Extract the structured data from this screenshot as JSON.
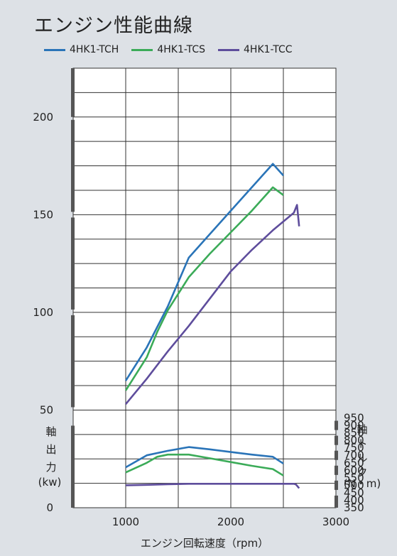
{
  "chart_data": {
    "type": "line",
    "title": "エンジン性能曲線",
    "xlabel": "エンジン回転速度（rpm）",
    "ylabel_left": [
      "軸",
      "出",
      "力",
      "(kw)"
    ],
    "ylabel_right": [
      "軸",
      "ト",
      "ル",
      "ク",
      "(N・m)"
    ],
    "xlim": [
      500,
      3000
    ],
    "x_ticks": [
      1000,
      2000,
      3000
    ],
    "ylim_left": [
      0,
      225
    ],
    "y_ticks_left": [
      0,
      50,
      100,
      150,
      200
    ],
    "ylim_right": [
      350,
      1000
    ],
    "y_ticks_right": [
      350,
      400,
      450,
      500,
      550,
      600,
      650,
      700,
      750,
      800,
      850,
      900,
      950
    ],
    "legend_position": "top",
    "series": [
      {
        "name": "4HK1-TCH",
        "quantity": "power",
        "axis": "left",
        "color": "#2a74b8",
        "points": [
          [
            1000,
            65
          ],
          [
            1200,
            82
          ],
          [
            1400,
            103
          ],
          [
            1600,
            128
          ],
          [
            1800,
            140
          ],
          [
            2000,
            152
          ],
          [
            2200,
            164
          ],
          [
            2300,
            170
          ],
          [
            2400,
            176
          ],
          [
            2500,
            170
          ]
        ]
      },
      {
        "name": "4HK1-TCH",
        "quantity": "torque",
        "axis": "right",
        "color": "#2a74b8",
        "points": [
          [
            1000,
            620
          ],
          [
            1200,
            700
          ],
          [
            1400,
            730
          ],
          [
            1600,
            755
          ],
          [
            1800,
            740
          ],
          [
            2000,
            722
          ],
          [
            2200,
            705
          ],
          [
            2400,
            690
          ],
          [
            2500,
            645
          ]
        ]
      },
      {
        "name": "4HK1-TCS",
        "quantity": "power",
        "axis": "left",
        "color": "#3bab58",
        "points": [
          [
            1000,
            60
          ],
          [
            1200,
            77
          ],
          [
            1300,
            90
          ],
          [
            1400,
            101
          ],
          [
            1600,
            118
          ],
          [
            1800,
            130
          ],
          [
            2000,
            141
          ],
          [
            2200,
            152
          ],
          [
            2300,
            158
          ],
          [
            2400,
            164
          ],
          [
            2500,
            160
          ]
        ]
      },
      {
        "name": "4HK1-TCS",
        "quantity": "torque",
        "axis": "right",
        "color": "#3bab58",
        "points": [
          [
            1000,
            586
          ],
          [
            1200,
            650
          ],
          [
            1300,
            690
          ],
          [
            1400,
            705
          ],
          [
            1600,
            705
          ],
          [
            1800,
            680
          ],
          [
            2000,
            655
          ],
          [
            2200,
            630
          ],
          [
            2400,
            608
          ],
          [
            2500,
            565
          ]
        ]
      },
      {
        "name": "4HK1-TCC",
        "quantity": "power",
        "axis": "left",
        "color": "#5e4d9c",
        "points": [
          [
            1000,
            53
          ],
          [
            1200,
            66
          ],
          [
            1400,
            80
          ],
          [
            1600,
            93
          ],
          [
            1800,
            107
          ],
          [
            2000,
            121
          ],
          [
            2200,
            132
          ],
          [
            2400,
            142
          ],
          [
            2600,
            151
          ],
          [
            2630,
            155
          ],
          [
            2650,
            144
          ]
        ]
      },
      {
        "name": "4HK1-TCC",
        "quantity": "torque",
        "axis": "right",
        "color": "#5e4d9c",
        "points": [
          [
            1000,
            500
          ],
          [
            1200,
            503
          ],
          [
            1400,
            507
          ],
          [
            1600,
            510
          ],
          [
            2000,
            510
          ],
          [
            2400,
            510
          ],
          [
            2600,
            510
          ],
          [
            2620,
            505
          ],
          [
            2650,
            480
          ]
        ]
      }
    ]
  }
}
